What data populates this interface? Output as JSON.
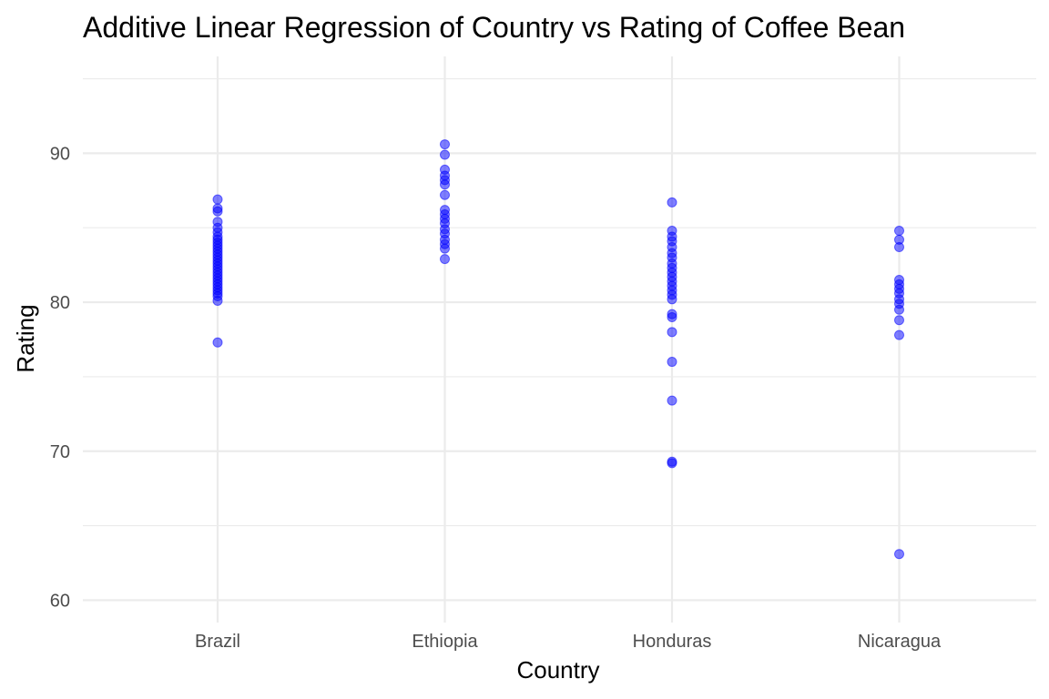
{
  "chart_data": {
    "type": "scatter",
    "title": "Additive Linear Regression of Country vs Rating of Coffee Bean",
    "xlabel": "Country",
    "ylabel": "Rating",
    "categories": [
      "Brazil",
      "Ethiopia",
      "Honduras",
      "Nicaragua"
    ],
    "ylim": [
      58.5,
      96.5
    ],
    "yticks": [
      60,
      70,
      80,
      90
    ],
    "grid": true,
    "point_color": "#0000ff",
    "series": [
      {
        "category": "Brazil",
        "values": [
          77.3,
          80.1,
          80.4,
          80.6,
          80.8,
          81.0,
          81.2,
          81.4,
          81.6,
          81.8,
          82.0,
          82.2,
          82.4,
          82.6,
          82.8,
          83.0,
          83.2,
          83.4,
          83.6,
          83.8,
          84.0,
          84.2,
          84.4,
          84.7,
          85.0,
          85.4,
          86.1,
          86.3,
          86.9
        ]
      },
      {
        "category": "Ethiopia",
        "values": [
          82.9,
          83.6,
          83.9,
          84.2,
          84.6,
          84.9,
          85.3,
          85.6,
          85.9,
          86.2,
          87.2,
          87.9,
          88.2,
          88.5,
          88.9,
          89.9,
          90.6
        ]
      },
      {
        "category": "Honduras",
        "values": [
          69.2,
          69.3,
          73.4,
          76.0,
          78.0,
          79.0,
          79.2,
          80.2,
          80.5,
          80.8,
          81.1,
          81.4,
          81.7,
          82.0,
          82.3,
          82.6,
          83.0,
          83.3,
          83.7,
          84.1,
          84.4,
          84.8,
          86.7
        ]
      },
      {
        "category": "Nicaragua",
        "values": [
          63.1,
          77.8,
          78.8,
          79.5,
          79.9,
          80.2,
          80.6,
          80.9,
          81.2,
          81.5,
          83.7,
          84.2,
          84.8
        ]
      }
    ]
  }
}
